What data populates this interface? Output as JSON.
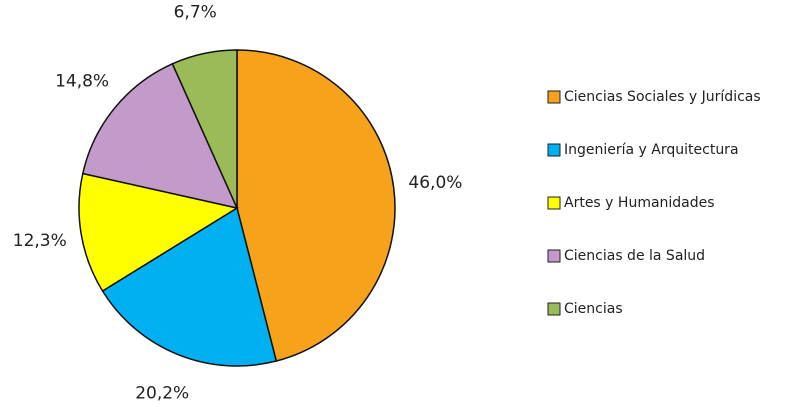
{
  "chart_data": {
    "type": "pie",
    "categories": [
      "Ciencias Sociales y Jurídicas",
      "Ingeniería y Arquitectura",
      "Artes y Humanidades",
      "Ciencias de la Salud",
      "Ciencias"
    ],
    "values": [
      46.0,
      20.2,
      12.3,
      14.8,
      6.7
    ],
    "value_labels": [
      "46,0%",
      "20,2%",
      "12,3%",
      "14,8%",
      "6,7%"
    ],
    "colors": [
      "#f7a21b",
      "#00b0f0",
      "#ffff00",
      "#c39bcb",
      "#9bbb59"
    ],
    "legend": "right"
  }
}
